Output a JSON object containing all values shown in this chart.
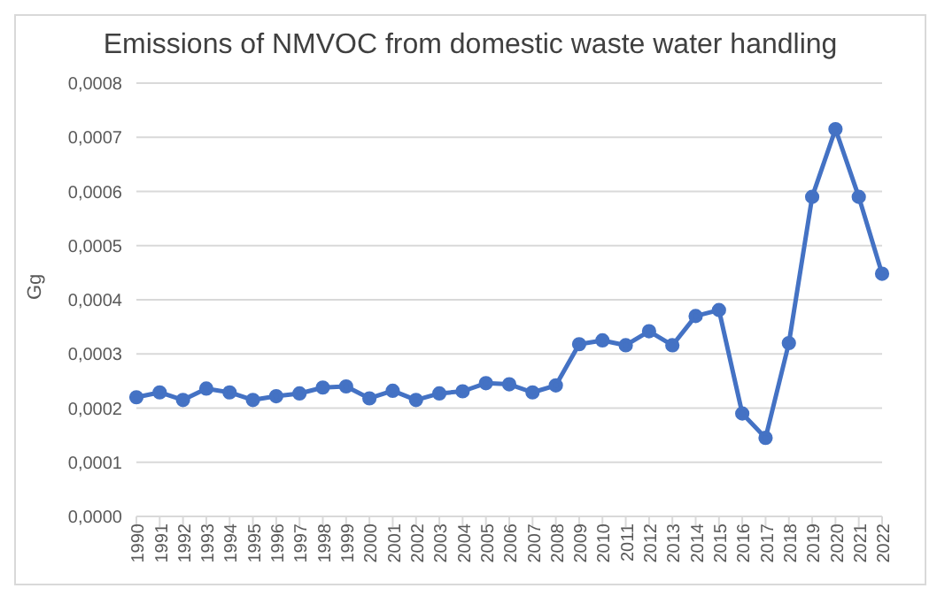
{
  "chart_data": {
    "type": "line",
    "title": "Emissions of NMVOC from domestic waste water handling",
    "ylabel": "Gg",
    "categories": [
      "1990",
      "1991",
      "1992",
      "1993",
      "1994",
      "1995",
      "1996",
      "1997",
      "1998",
      "1999",
      "2000",
      "2001",
      "2002",
      "2003",
      "2004",
      "2005",
      "2006",
      "2007",
      "2008",
      "2009",
      "2010",
      "2011",
      "2012",
      "2013",
      "2014",
      "2015",
      "2016",
      "2017",
      "2018",
      "2019",
      "2020",
      "2021",
      "2022"
    ],
    "series": [
      {
        "color": "#4472c4",
        "values": [
          0.00022,
          0.000229,
          0.000215,
          0.000236,
          0.000229,
          0.000215,
          0.000222,
          0.000227,
          0.000238,
          0.00024,
          0.000218,
          0.000232,
          0.000215,
          0.000227,
          0.000231,
          0.000246,
          0.000244,
          0.000229,
          0.000242,
          0.000318,
          0.000325,
          0.000316,
          0.000342,
          0.000316,
          0.00037,
          0.000381,
          0.00019,
          0.000145,
          0.00032,
          0.00059,
          0.000715,
          0.00059,
          0.000448
        ]
      }
    ],
    "ylim": [
      0,
      0.0008
    ],
    "yticks": [
      {
        "value": 0,
        "label": "0,0000"
      },
      {
        "value": 0.0001,
        "label": "0,0001"
      },
      {
        "value": 0.0002,
        "label": "0,0002"
      },
      {
        "value": 0.0003,
        "label": "0,0003"
      },
      {
        "value": 0.0004,
        "label": "0,0004"
      },
      {
        "value": 0.0005,
        "label": "0,0005"
      },
      {
        "value": 0.0006,
        "label": "0,0006"
      },
      {
        "value": 0.0007,
        "label": "0,0007"
      },
      {
        "value": 0.0008,
        "label": "0,0008"
      }
    ],
    "grid": "y",
    "marker": "circle",
    "line_style": "solid"
  }
}
